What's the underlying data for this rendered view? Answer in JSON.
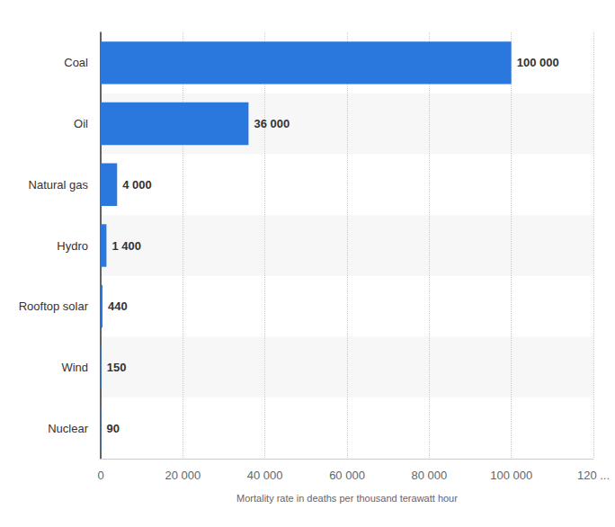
{
  "chart_data": {
    "type": "bar",
    "orientation": "horizontal",
    "xlabel": "Mortality rate in deaths per thousand terawatt hour",
    "categories": [
      "Coal",
      "Oil",
      "Natural gas",
      "Hydro",
      "Rooftop solar",
      "Wind",
      "Nuclear"
    ],
    "values": [
      100000,
      36000,
      4000,
      1400,
      440,
      150,
      90
    ],
    "value_labels": [
      "100 000",
      "36 000",
      "4 000",
      "1 400",
      "440",
      "150",
      "90"
    ],
    "color": "#2a77dd",
    "xlim": [
      0,
      120000
    ],
    "xticks": [
      0,
      {
        "value": 20000,
        "label": "20 000"
      },
      {
        "value": 40000,
        "label": "40 000"
      },
      {
        "value": 60000,
        "label": "60 000"
      },
      {
        "value": 80000,
        "label": "80 000"
      },
      {
        "value": 100000,
        "label": "100 000"
      },
      {
        "value": 120000,
        "label": "120 ..."
      }
    ],
    "grid": true,
    "data_labels": true
  }
}
